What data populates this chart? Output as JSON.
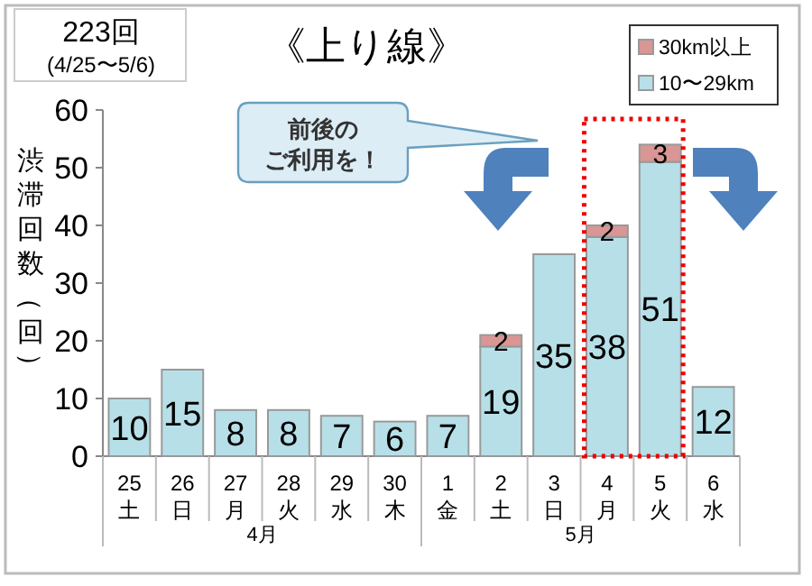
{
  "chart_data": {
    "type": "bar",
    "stacked": true,
    "title": "《上り線》",
    "ylabel": "渋滞回数（回）",
    "categories": [
      "25\n土",
      "26\n日",
      "27\n月",
      "28\n火",
      "29\n水",
      "30\n木",
      "1\n金",
      "2\n土",
      "3\n日",
      "4\n月",
      "5\n火",
      "6\n水"
    ],
    "series": [
      {
        "name": "10〜29km",
        "color": "#b7dfe8",
        "values": [
          10,
          15,
          8,
          8,
          7,
          6,
          7,
          19,
          35,
          38,
          51,
          12
        ]
      },
      {
        "name": "30km以上",
        "color": "#d99694",
        "values": [
          null,
          null,
          null,
          null,
          null,
          null,
          null,
          2,
          null,
          2,
          3,
          null
        ]
      }
    ],
    "ylim": [
      0,
      60
    ],
    "yticks": [
      0,
      10,
      20,
      30,
      40,
      50,
      60
    ],
    "data_labels": true,
    "legend": "top right",
    "grid": false,
    "annotations": [
      "223回",
      "(4/25〜5/6)",
      "前後の",
      "ご利用を！",
      "4月",
      "5月"
    ]
  }
}
